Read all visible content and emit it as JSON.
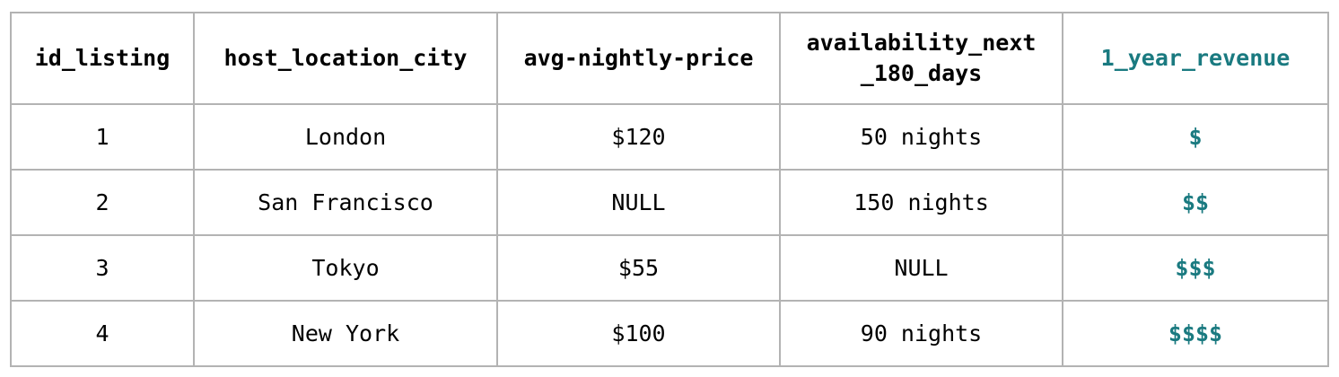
{
  "colors": {
    "accent": "#1a7a80",
    "border": "#b3b3b3",
    "text": "#000000"
  },
  "table": {
    "headers": [
      "id_listing",
      "host_location_city",
      "avg-nightly-price",
      "availability_next\n_180_days",
      "1_year_revenue"
    ],
    "rows": [
      [
        "1",
        "London",
        "$120",
        "50 nights",
        "$"
      ],
      [
        "2",
        "San Francisco",
        "NULL",
        "150 nights",
        "$$"
      ],
      [
        "3",
        "Tokyo",
        "$55",
        "NULL",
        "$$$"
      ],
      [
        "4",
        "New York",
        "$100",
        "90 nights",
        "$$$$"
      ]
    ]
  }
}
